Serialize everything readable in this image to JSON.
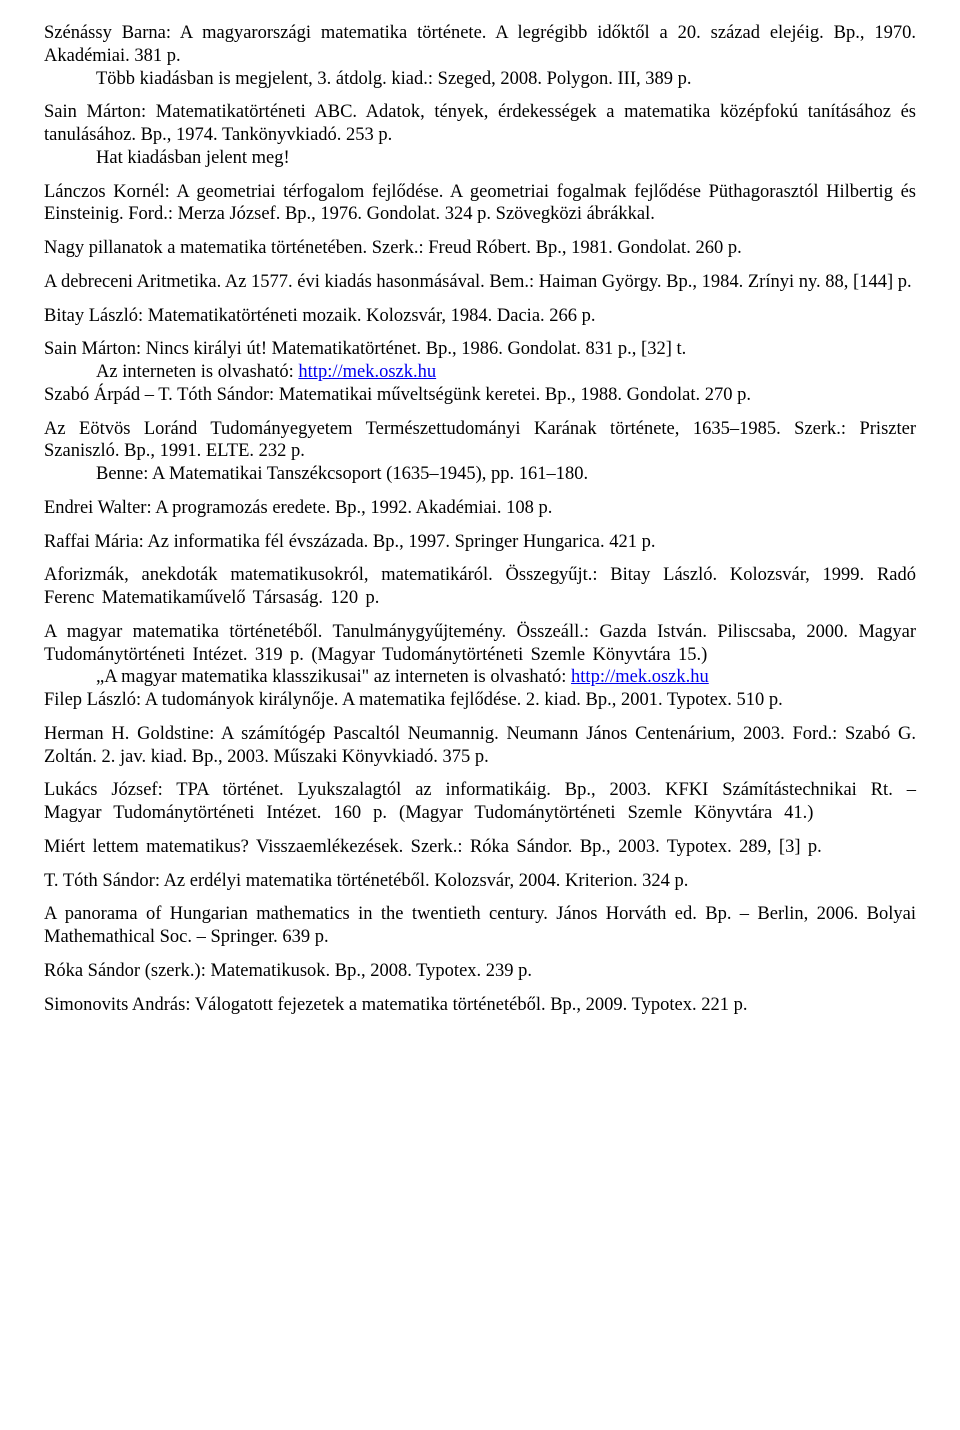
{
  "entries": {
    "e1_l1": "Szénássy Barna: A magyarországi matematika története. A legrégibb időktől a 20. század elejéig. Bp., 1970. Akadémiai. 381 p.",
    "e1_i1": "Több kiadásban is megjelent, 3. átdolg. kiad.: Szeged, 2008. Polygon. III, 389 p.",
    "e2_l1": "Sain Márton: Matematikatörténeti ABC. Adatok, tények, érdekességek a matematika középfokú tanításához és tanulásához. Bp., 1974. Tankönyvkiadó. 253 p.",
    "e2_i1": "Hat kiadásban jelent meg!",
    "e3_l1": "Lánczos Kornél: A geometriai térfogalom fejlődése. A geometriai fogalmak fejlődése Püthagorasztól Hilbertig és Einsteinig. Ford.: Merza József. Bp., 1976. Gondolat. 324 p. Szövegközi ábrákkal.",
    "e4_l1": "Nagy pillanatok a matematika történetében. Szerk.: Freud Róbert. Bp., 1981. Gondolat. 260 p.",
    "e5_l1": "A debreceni Aritmetika. Az 1577. évi kiadás hasonmásával. Bem.: Haiman György. Bp., 1984. Zrínyi ny. 88, [144] p.",
    "e6_l1": "Bitay László: Matematikatörténeti mozaik. Kolozsvár, 1984. Dacia. 266 p.",
    "e7_l1": "Sain Márton: Nincs királyi út! Matematikatörténet. Bp., 1986. Gondolat. 831 p., [32] t.",
    "e7_i_pre": "Az interneten is olvasható: ",
    "e7_link": "http://mek.oszk.hu",
    "e8_l1": "Szabó Árpád – T. Tóth Sándor: Matematikai műveltségünk keretei. Bp., 1988. Gondolat. 270 p.",
    "e9_l1": "Az Eötvös Loránd Tudományegyetem Természettudományi Karának története, 1635–1985. Szerk.: Priszter Szaniszló. Bp., 1991. ELTE. 232 p.",
    "e9_i1": "Benne: A Matematikai Tanszékcsoport (1635–1945), pp. 161–180.",
    "e10_l1": "Endrei Walter: A programozás eredete. Bp., 1992. Akadémiai. 108 p.",
    "e11_l1": "Raffai Mária: Az informatika fél évszázada. Bp., 1997. Springer Hungarica. 421 p.",
    "e12_l1": "Aforizmák, anekdoták matematikusokról, matematikáról. Összegyűjt.: Bitay László. Kolozsvár, 1999. Radó Ferenc Matematikaművelő Társaság. 120 p.",
    "e13_l1": "A magyar matematika történetéből. Tanulmánygyűjtemény. Összeáll.: Gazda István. Piliscsaba, 2000. Magyar Tudománytörténeti Intézet. 319 p. (Magyar Tudománytörténeti Szemle Könyvtára 15.)",
    "e13_i_pre": "„A magyar matematika klasszikusai\" az interneten is olvasható: ",
    "e13_link": "http://mek.oszk.hu",
    "e14_l1": "Filep László: A tudományok királynője. A matematika fejlődése. 2. kiad. Bp., 2001. Typotex. 510 p.",
    "e15_l1": "Herman H. Goldstine: A számítógép Pascaltól Neumannig. Neumann János Centenárium, 2003. Ford.: Szabó G. Zoltán. 2. jav. kiad. Bp., 2003. Műszaki Könyvkiadó. 375 p.",
    "e16_l1": "Lukács József: TPA történet. Lyukszalagtól az informatikáig. Bp., 2003. KFKI Számítástechnikai Rt. – Magyar Tudománytörténeti Intézet. 160 p. (Magyar Tudománytörténeti Szemle Könyvtára 41.)",
    "e17_l1": "Miért lettem matematikus? Visszaemlékezések. Szerk.: Róka Sándor. Bp., 2003. Typotex. 289, [3] p.",
    "e18_l1": "T. Tóth Sándor: Az erdélyi matematika történetéből. Kolozsvár, 2004. Kriterion. 324 p.",
    "e19_l1": "A panorama of Hungarian mathematics in the twentieth century. János Horváth ed. Bp. – Berlin, 2006. Bolyai Mathemathical Soc. – Springer. 639 p.",
    "e20_l1": "Róka Sándor (szerk.): Matematikusok. Bp., 2008. Typotex. 239 p.",
    "e21_l1": "Simonovits András: Válogatott fejezetek a matematika történetéből. Bp., 2009. Typotex. 221 p."
  }
}
